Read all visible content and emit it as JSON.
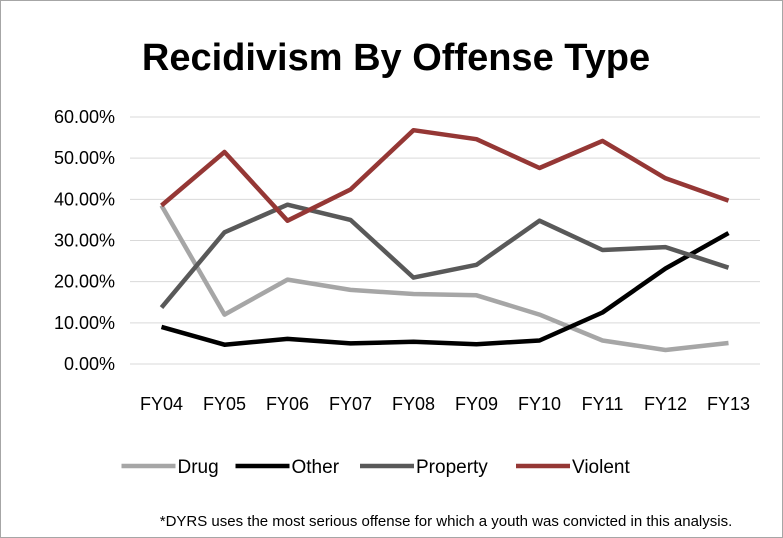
{
  "chart_data": {
    "type": "line",
    "title": "Recidivism By Offense Type",
    "xlabel": "",
    "ylabel": "",
    "categories": [
      "FY04",
      "FY05",
      "FY06",
      "FY07",
      "FY08",
      "FY09",
      "FY10",
      "FY11",
      "FY12",
      "FY13"
    ],
    "ylim": [
      0,
      0.6
    ],
    "yticks": [
      "0.00%",
      "10.00%",
      "20.00%",
      "30.00%",
      "40.00%",
      "50.00%",
      "60.00%"
    ],
    "ytick_values": [
      0,
      0.1,
      0.2,
      0.3,
      0.4,
      0.5,
      0.6
    ],
    "grid": true,
    "legend_position": "bottom",
    "series": [
      {
        "name": "Drug",
        "color": "#a6a6a6",
        "values": [
          0.385,
          0.12,
          0.205,
          0.18,
          0.17,
          0.167,
          0.12,
          0.057,
          0.034,
          0.051
        ]
      },
      {
        "name": "Other",
        "color": "#000000",
        "values": [
          0.09,
          0.047,
          0.061,
          0.05,
          0.054,
          0.048,
          0.057,
          0.125,
          0.232,
          0.318
        ]
      },
      {
        "name": "Property",
        "color": "#595959",
        "values": [
          0.137,
          0.32,
          0.387,
          0.35,
          0.21,
          0.241,
          0.348,
          0.277,
          0.284,
          0.234
        ]
      },
      {
        "name": "Violent",
        "color": "#953735",
        "values": [
          0.385,
          0.515,
          0.348,
          0.424,
          0.568,
          0.546,
          0.476,
          0.542,
          0.451,
          0.397
        ]
      }
    ],
    "footnote": "*DYRS uses the most serious offense for which a youth was convicted in this analysis."
  }
}
